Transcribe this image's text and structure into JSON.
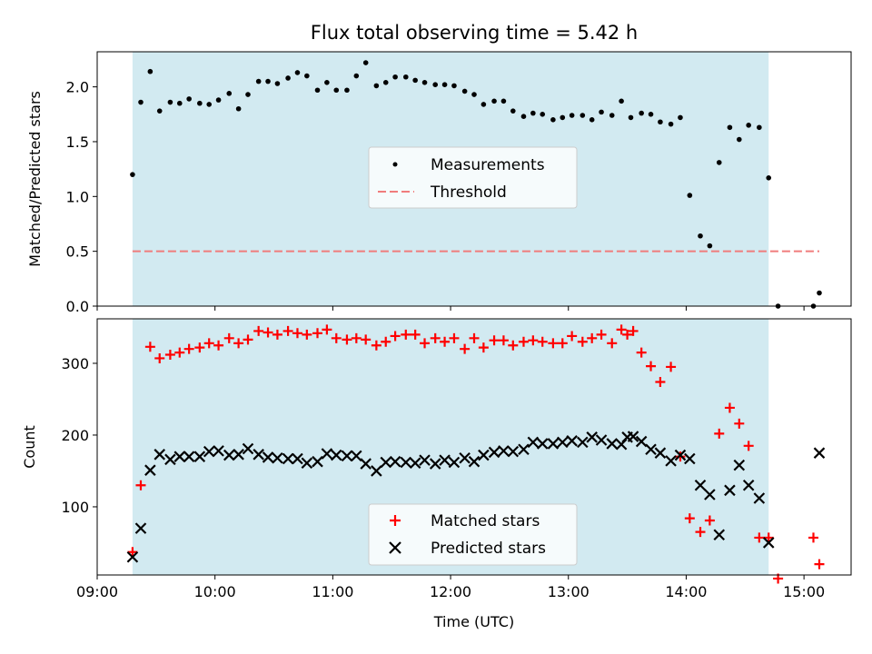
{
  "chart_data": [
    {
      "type": "scatter",
      "title": "Flux total observing time = 5.42 h",
      "ylabel": "Matched/Predicted stars",
      "xlabel": "",
      "xlim": [
        9.0,
        15.4
      ],
      "ylim": [
        0.0,
        2.32
      ],
      "yticks": [
        0.0,
        0.5,
        1.0,
        1.5,
        2.0
      ],
      "ytick_labels": [
        "0.0",
        "0.5",
        "1.0",
        "1.5",
        "2.0"
      ],
      "shaded_span": [
        9.3,
        14.7
      ],
      "threshold": {
        "name": "Threshold",
        "y": 0.5,
        "x_range": [
          9.3,
          15.13
        ],
        "color": "#f07c7c"
      },
      "legend": [
        "Measurements",
        "Threshold"
      ],
      "series": [
        {
          "name": "Measurements",
          "marker": "dot",
          "color": "#000000",
          "x": [
            9.3,
            9.37,
            9.45,
            9.53,
            9.62,
            9.7,
            9.78,
            9.87,
            9.95,
            10.03,
            10.12,
            10.2,
            10.28,
            10.37,
            10.45,
            10.53,
            10.62,
            10.7,
            10.78,
            10.87,
            10.95,
            11.03,
            11.12,
            11.2,
            11.28,
            11.37,
            11.45,
            11.53,
            11.62,
            11.7,
            11.78,
            11.87,
            11.95,
            12.03,
            12.12,
            12.2,
            12.28,
            12.37,
            12.45,
            12.53,
            12.62,
            12.7,
            12.78,
            12.87,
            12.95,
            13.03,
            13.12,
            13.2,
            13.28,
            13.37,
            13.45,
            13.53,
            13.62,
            13.7,
            13.78,
            13.87,
            13.95,
            14.03,
            14.12,
            14.2,
            14.28,
            14.37,
            14.45,
            14.53,
            14.62,
            14.7,
            14.78,
            15.08,
            15.13
          ],
          "y": [
            1.2,
            1.86,
            2.14,
            1.78,
            1.86,
            1.85,
            1.89,
            1.85,
            1.84,
            1.88,
            1.94,
            1.8,
            1.93,
            2.05,
            2.05,
            2.03,
            2.08,
            2.13,
            2.1,
            1.97,
            2.04,
            1.97,
            1.97,
            2.1,
            2.22,
            2.01,
            2.04,
            2.09,
            2.09,
            2.06,
            2.04,
            2.02,
            2.02,
            2.01,
            1.96,
            1.93,
            1.84,
            1.87,
            1.87,
            1.78,
            1.73,
            1.76,
            1.75,
            1.7,
            1.72,
            1.74,
            1.74,
            1.7,
            1.77,
            1.74,
            1.87,
            1.72,
            1.76,
            1.75,
            1.68,
            1.66,
            1.72,
            1.01,
            0.64,
            0.55,
            1.31,
            1.63,
            1.52,
            1.65,
            1.63,
            1.17,
            0.0,
            0.0,
            0.12
          ]
        }
      ]
    },
    {
      "type": "scatter",
      "title": "",
      "ylabel": "Count",
      "xlabel": "Time (UTC)",
      "xlim": [
        9.0,
        15.4
      ],
      "ylim": [
        5,
        362
      ],
      "yticks": [
        100,
        200,
        300
      ],
      "ytick_labels": [
        "100",
        "200",
        "300"
      ],
      "xticks": [
        9,
        10,
        11,
        12,
        13,
        14,
        15
      ],
      "xtick_labels": [
        "09:00",
        "10:00",
        "11:00",
        "12:00",
        "13:00",
        "14:00",
        "15:00"
      ],
      "shaded_span": [
        9.3,
        14.7
      ],
      "legend": [
        "Matched stars",
        "Predicted stars"
      ],
      "series": [
        {
          "name": "Matched stars",
          "marker": "plus",
          "color": "#ff0000",
          "x": [
            9.3,
            9.37,
            9.45,
            9.53,
            9.62,
            9.7,
            9.78,
            9.87,
            9.95,
            10.03,
            10.12,
            10.2,
            10.28,
            10.37,
            10.45,
            10.53,
            10.62,
            10.7,
            10.78,
            10.87,
            10.95,
            11.03,
            11.12,
            11.2,
            11.28,
            11.37,
            11.45,
            11.53,
            11.62,
            11.7,
            11.78,
            11.87,
            11.95,
            12.03,
            12.12,
            12.2,
            12.28,
            12.37,
            12.45,
            12.53,
            12.62,
            12.7,
            12.78,
            12.87,
            12.95,
            13.03,
            13.12,
            13.2,
            13.28,
            13.37,
            13.45,
            13.5,
            13.55,
            13.62,
            13.7,
            13.78,
            13.87,
            13.95,
            14.03,
            14.12,
            14.2,
            14.28,
            14.37,
            14.45,
            14.53,
            14.62,
            14.7,
            14.78,
            15.08,
            15.13
          ],
          "y": [
            37,
            130,
            323,
            307,
            312,
            315,
            320,
            322,
            328,
            325,
            335,
            328,
            333,
            345,
            343,
            340,
            345,
            342,
            340,
            342,
            347,
            335,
            333,
            335,
            333,
            325,
            330,
            338,
            340,
            340,
            328,
            335,
            330,
            335,
            320,
            335,
            322,
            332,
            332,
            325,
            330,
            332,
            330,
            328,
            328,
            338,
            330,
            335,
            340,
            328,
            347,
            340,
            345,
            315,
            296,
            274,
            295,
            170,
            84,
            65,
            81,
            202,
            238,
            216,
            185,
            57,
            57,
            0,
            57,
            20
          ]
        },
        {
          "name": "Predicted stars",
          "marker": "x",
          "color": "#000000",
          "x": [
            9.3,
            9.37,
            9.45,
            9.53,
            9.62,
            9.7,
            9.78,
            9.87,
            9.95,
            10.03,
            10.12,
            10.2,
            10.28,
            10.37,
            10.45,
            10.53,
            10.62,
            10.7,
            10.78,
            10.87,
            10.95,
            11.03,
            11.12,
            11.2,
            11.28,
            11.37,
            11.45,
            11.53,
            11.62,
            11.7,
            11.78,
            11.87,
            11.95,
            12.03,
            12.12,
            12.2,
            12.28,
            12.37,
            12.45,
            12.53,
            12.62,
            12.7,
            12.78,
            12.87,
            12.95,
            13.03,
            13.12,
            13.2,
            13.28,
            13.37,
            13.45,
            13.5,
            13.55,
            13.62,
            13.7,
            13.78,
            13.87,
            13.95,
            14.03,
            14.12,
            14.2,
            14.28,
            14.37,
            14.45,
            14.53,
            14.62,
            14.7,
            15.13
          ],
          "y": [
            30,
            70,
            151,
            173,
            166,
            170,
            170,
            170,
            177,
            178,
            172,
            173,
            181,
            173,
            169,
            168,
            167,
            167,
            161,
            163,
            174,
            172,
            171,
            171,
            160,
            150,
            162,
            163,
            162,
            161,
            165,
            160,
            165,
            162,
            168,
            163,
            172,
            176,
            178,
            177,
            180,
            190,
            188,
            188,
            190,
            192,
            190,
            197,
            193,
            188,
            187,
            197,
            198,
            191,
            180,
            175,
            164,
            172,
            167,
            130,
            117,
            61,
            123,
            158,
            130,
            112,
            50,
            175
          ]
        }
      ]
    }
  ]
}
